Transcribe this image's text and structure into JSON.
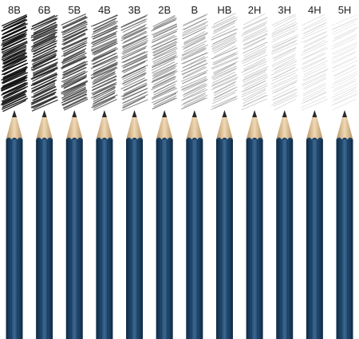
{
  "pencils": [
    {
      "grade": "8B",
      "darkness": 1.0
    },
    {
      "grade": "6B",
      "darkness": 0.9
    },
    {
      "grade": "5B",
      "darkness": 0.8
    },
    {
      "grade": "4B",
      "darkness": 0.72
    },
    {
      "grade": "3B",
      "darkness": 0.62
    },
    {
      "grade": "2B",
      "darkness": 0.54
    },
    {
      "grade": "B",
      "darkness": 0.46
    },
    {
      "grade": "HB",
      "darkness": 0.38
    },
    {
      "grade": "2H",
      "darkness": 0.3
    },
    {
      "grade": "3H",
      "darkness": 0.24
    },
    {
      "grade": "4H",
      "darkness": 0.18
    },
    {
      "grade": "5H",
      "darkness": 0.13
    }
  ],
  "colors": {
    "background": "#ffffff",
    "body": "#1d4266",
    "body_dark": "#0f2a45",
    "body_light": "#3b6790",
    "wood": "#e3c9a0",
    "wood_shade": "#b99466",
    "lead": "#2a2a2a",
    "label": "#222222"
  }
}
